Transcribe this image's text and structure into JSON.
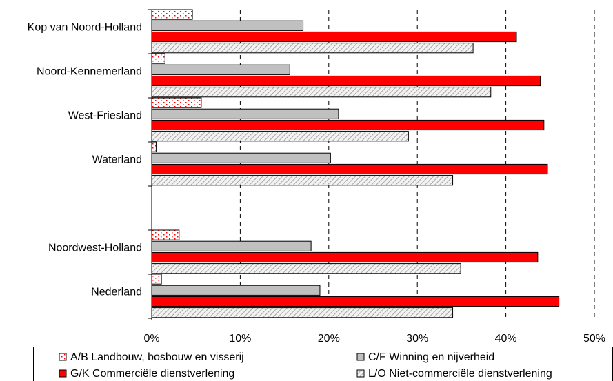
{
  "chart_data": {
    "type": "bar",
    "orientation": "horizontal",
    "xlim": [
      0,
      50
    ],
    "x_unit": "%",
    "xticks": [
      "0%",
      "10%",
      "20%",
      "30%",
      "40%",
      "50%"
    ],
    "categories": [
      "Kop van Noord-Holland",
      "Noord-Kennemerland",
      "West-Friesland",
      "Waterland",
      "Noordwest-Holland",
      "Nederland"
    ],
    "category_group_gap_after": "Waterland",
    "grid": "vertical dashed",
    "legend_position": "bottom",
    "series": [
      {
        "name": "A/B Landbouw, bosbouw en visserij",
        "color": "#ffffff",
        "pattern": "red-dots",
        "values": [
          4.6,
          1.5,
          5.6,
          0.5,
          3.1,
          1.1
        ]
      },
      {
        "name": "C/F Winning en nijverheid",
        "color": "#c0c0c0",
        "pattern": "solid",
        "values": [
          17.1,
          15.6,
          21.1,
          20.2,
          18.0,
          19.0
        ]
      },
      {
        "name": "G/K Commerciële dienstverlening",
        "color": "#ff0000",
        "pattern": "solid",
        "values": [
          41.2,
          43.9,
          44.3,
          44.7,
          43.6,
          46.0
        ]
      },
      {
        "name": "L/O Niet-commerciële dienstverlening",
        "color": "#d9d9d9",
        "pattern": "diagonal-hatch",
        "values": [
          36.3,
          38.3,
          29.0,
          34.0,
          34.9,
          34.0
        ]
      }
    ]
  }
}
